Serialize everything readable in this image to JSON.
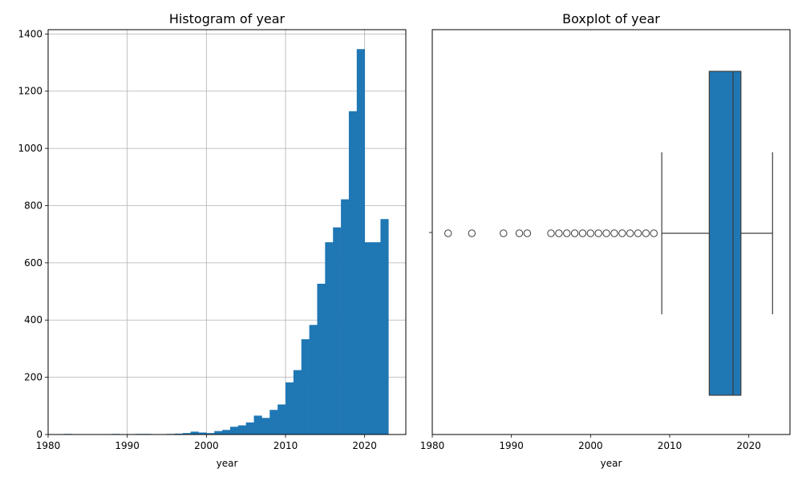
{
  "chart_data": [
    {
      "type": "bar",
      "title": "Histogram of year",
      "xlabel": "year",
      "ylabel": "",
      "xlim": [
        1980,
        2025.2
      ],
      "ylim": [
        0,
        1415
      ],
      "x_ticks": [
        1980,
        1990,
        2000,
        2010,
        2020
      ],
      "y_ticks": [
        0,
        200,
        400,
        600,
        800,
        1000,
        1200,
        1400
      ],
      "grid": true,
      "color": "#1f77b4",
      "bins": [
        {
          "x0": 1982.0,
          "x1": 1983.0,
          "count": 2
        },
        {
          "x0": 1984.0,
          "x1": 1985.0,
          "count": 1
        },
        {
          "x0": 1988.0,
          "x1": 1989.0,
          "count": 2
        },
        {
          "x0": 1990.0,
          "x1": 1991.0,
          "count": 1
        },
        {
          "x0": 1991.0,
          "x1": 1992.0,
          "count": 2
        },
        {
          "x0": 1992.0,
          "x1": 1993.0,
          "count": 2
        },
        {
          "x0": 1994.0,
          "x1": 1995.0,
          "count": 1
        },
        {
          "x0": 1995.0,
          "x1": 1996.0,
          "count": 2
        },
        {
          "x0": 1996.0,
          "x1": 1997.0,
          "count": 3
        },
        {
          "x0": 1997.0,
          "x1": 1998.0,
          "count": 5
        },
        {
          "x0": 1998.0,
          "x1": 1999.0,
          "count": 10
        },
        {
          "x0": 1999.0,
          "x1": 2000.0,
          "count": 7
        },
        {
          "x0": 2000.0,
          "x1": 2001.0,
          "count": 5
        },
        {
          "x0": 2001.0,
          "x1": 2002.0,
          "count": 12
        },
        {
          "x0": 2002.0,
          "x1": 2003.0,
          "count": 16
        },
        {
          "x0": 2003.0,
          "x1": 2004.0,
          "count": 27
        },
        {
          "x0": 2004.0,
          "x1": 2005.0,
          "count": 32
        },
        {
          "x0": 2005.0,
          "x1": 2006.0,
          "count": 42
        },
        {
          "x0": 2006.0,
          "x1": 2007.0,
          "count": 66
        },
        {
          "x0": 2007.0,
          "x1": 2008.0,
          "count": 58
        },
        {
          "x0": 2008.0,
          "x1": 2009.0,
          "count": 86
        },
        {
          "x0": 2009.0,
          "x1": 2010.0,
          "count": 105
        },
        {
          "x0": 2010.0,
          "x1": 2011.0,
          "count": 182
        },
        {
          "x0": 2011.0,
          "x1": 2012.0,
          "count": 225
        },
        {
          "x0": 2012.0,
          "x1": 2013.0,
          "count": 333
        },
        {
          "x0": 2013.0,
          "x1": 2014.0,
          "count": 383
        },
        {
          "x0": 2014.0,
          "x1": 2015.0,
          "count": 527
        },
        {
          "x0": 2015.0,
          "x1": 2016.0,
          "count": 672
        },
        {
          "x0": 2016.0,
          "x1": 2017.0,
          "count": 724
        },
        {
          "x0": 2017.0,
          "x1": 2018.0,
          "count": 822
        },
        {
          "x0": 2018.0,
          "x1": 2019.0,
          "count": 1130
        },
        {
          "x0": 2019.0,
          "x1": 2020.0,
          "count": 1347
        },
        {
          "x0": 2020.0,
          "x1": 2022.0,
          "count": 672
        },
        {
          "x0": 2022.0,
          "x1": 2023.0,
          "count": 753
        }
      ]
    },
    {
      "type": "boxplot",
      "title": "Boxplot of year",
      "xlabel": "year",
      "xlim": [
        1980,
        2025.2
      ],
      "x_ticks": [
        1980,
        1990,
        2000,
        2010,
        2020
      ],
      "grid": false,
      "color": "#1f77b4",
      "q1": 2015,
      "median": 2018,
      "q3": 2019,
      "whisker_low": 2009,
      "whisker_high": 2023,
      "outliers": [
        1982,
        1985,
        1989,
        1991,
        1992,
        1995,
        1996,
        1997,
        1998,
        1999,
        2000,
        2001,
        2002,
        2003,
        2004,
        2005,
        2006,
        2007,
        2008
      ]
    }
  ]
}
